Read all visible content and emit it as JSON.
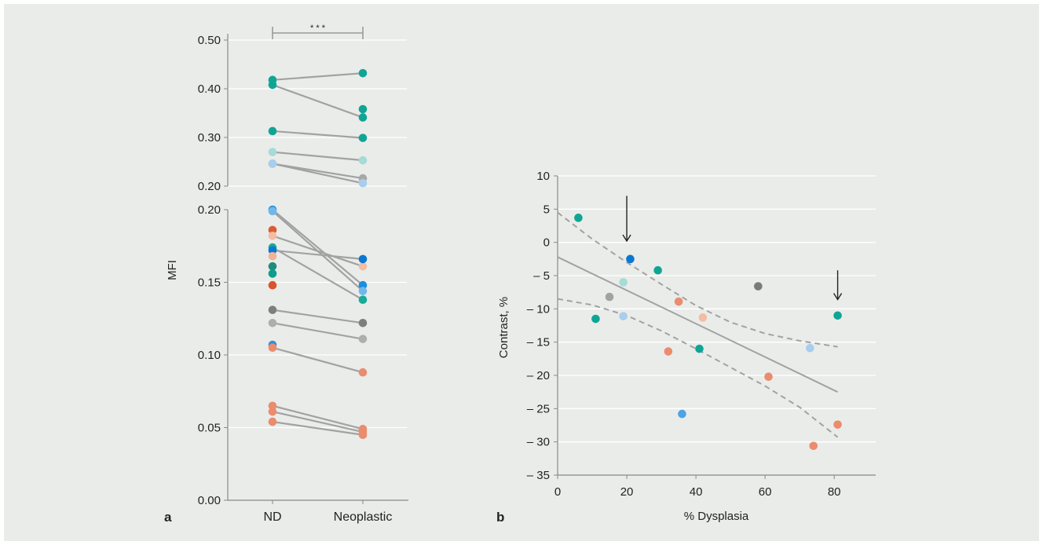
{
  "panel_labels": {
    "a": "a",
    "b": "b"
  },
  "chart_data": [
    {
      "type": "scatter",
      "panel": "a",
      "ylabel": "MFI",
      "categories": [
        "ND",
        "Neoplastic"
      ],
      "significance": "* * *",
      "upper_ylim": [
        0.2,
        0.5
      ],
      "upper_yticks": [
        "0.50",
        "0.40",
        "0.30",
        "0.20"
      ],
      "lower_ylim": [
        0.0,
        0.2
      ],
      "lower_yticks": [
        "0.20",
        "0.15",
        "0.10",
        "0.05",
        "0.00"
      ],
      "line_color": "#a2a2a2",
      "pairs": [
        {
          "nd": 0.418,
          "neo": 0.432,
          "color": "#0fa594"
        },
        {
          "nd": 0.408,
          "neo": 0.341,
          "color": "#0fa594"
        },
        {
          "nd": null,
          "neo": 0.358,
          "color": "#0fa594"
        },
        {
          "nd": 0.313,
          "neo": 0.299,
          "color": "#0fa594"
        },
        {
          "nd": 0.27,
          "neo": 0.253,
          "color": "#a6dbd6"
        },
        {
          "nd": 0.246,
          "neo": 0.216,
          "color": "#a8a8a8"
        },
        {
          "nd": 0.246,
          "neo": 0.206,
          "color": "#a8cdee"
        },
        {
          "nd": 0.2,
          "neo": 0.148,
          "color": "#1a8ee0"
        },
        {
          "nd": 0.199,
          "neo": 0.144,
          "color": "#70b8ec"
        },
        {
          "nd": 0.186,
          "neo": null,
          "color": "#dc5b33"
        },
        {
          "nd": 0.182,
          "neo": 0.161,
          "color": "#f2bda3"
        },
        {
          "nd": 0.174,
          "neo": 0.138,
          "color": "#18ab98"
        },
        {
          "nd": 0.172,
          "neo": 0.166,
          "color": "#0a78d2"
        },
        {
          "nd": 0.168,
          "neo": null,
          "color": "#f0b396"
        },
        {
          "nd": 0.161,
          "neo": null,
          "color": "#1f8c7d"
        },
        {
          "nd": 0.156,
          "neo": null,
          "color": "#0e9d8c"
        },
        {
          "nd": 0.148,
          "neo": null,
          "color": "#d9552d"
        },
        {
          "nd": 0.131,
          "neo": 0.122,
          "color": "#7e7e7e"
        },
        {
          "nd": 0.122,
          "neo": 0.111,
          "color": "#aeaeae"
        },
        {
          "nd": 0.107,
          "neo": null,
          "color": "#3a8ed6"
        },
        {
          "nd": 0.105,
          "neo": 0.088,
          "color": "#ea8c6e"
        },
        {
          "nd": 0.065,
          "neo": 0.049,
          "color": "#ea8c6e"
        },
        {
          "nd": 0.061,
          "neo": 0.047,
          "color": "#ea8c6e"
        },
        {
          "nd": 0.054,
          "neo": 0.045,
          "color": "#ea8c6e"
        }
      ]
    },
    {
      "type": "scatter",
      "panel": "b",
      "xlabel": "% Dysplasia",
      "ylabel": "Contrast, %",
      "xlim": [
        0,
        92
      ],
      "ylim": [
        -35,
        10
      ],
      "xticks": [
        "0",
        "20",
        "40",
        "60",
        "80"
      ],
      "yticks": [
        "10",
        "5",
        "0",
        "– 5",
        "– 10",
        "– 15",
        "– 20",
        "– 25",
        "– 30",
        "– 35"
      ],
      "grid": true,
      "points": [
        {
          "x": 6,
          "y": 3.7,
          "color": "#0fa594"
        },
        {
          "x": 11,
          "y": -11.5,
          "color": "#0fa594"
        },
        {
          "x": 15,
          "y": -8.2,
          "color": "#a2a2a2"
        },
        {
          "x": 19,
          "y": -6.0,
          "color": "#a6dbd6"
        },
        {
          "x": 19,
          "y": -11.1,
          "color": "#a8cdee"
        },
        {
          "x": 21,
          "y": -2.5,
          "color": "#0a78d2"
        },
        {
          "x": 29,
          "y": -4.2,
          "color": "#0fa594"
        },
        {
          "x": 32,
          "y": -16.4,
          "color": "#ea8c6e"
        },
        {
          "x": 35,
          "y": -8.9,
          "color": "#ea8c6e"
        },
        {
          "x": 36,
          "y": -25.8,
          "color": "#4aa3e6"
        },
        {
          "x": 41,
          "y": -16.0,
          "color": "#0fa594"
        },
        {
          "x": 42,
          "y": -11.3,
          "color": "#f2bda3"
        },
        {
          "x": 58,
          "y": -6.6,
          "color": "#7a7a7a"
        },
        {
          "x": 61,
          "y": -20.2,
          "color": "#ea8c6e"
        },
        {
          "x": 73,
          "y": -15.9,
          "color": "#a8cdee"
        },
        {
          "x": 74,
          "y": -30.6,
          "color": "#ea8c6e"
        },
        {
          "x": 81,
          "y": -11.0,
          "color": "#0fa594"
        },
        {
          "x": 81,
          "y": -27.4,
          "color": "#ea8c6e"
        }
      ],
      "regression_line": {
        "x": [
          0,
          81
        ],
        "y": [
          -2.2,
          -22.5
        ],
        "color": "#a2a2a2"
      },
      "confidence_band": {
        "color": "#a2a2a2",
        "upper": [
          [
            0,
            4.5
          ],
          [
            10,
            0.5
          ],
          [
            20,
            -3.0
          ],
          [
            30,
            -6.3
          ],
          [
            40,
            -9.5
          ],
          [
            50,
            -12.0
          ],
          [
            60,
            -13.7
          ],
          [
            70,
            -14.8
          ],
          [
            81,
            -15.7
          ]
        ],
        "lower": [
          [
            0,
            -8.5
          ],
          [
            10,
            -9.4
          ],
          [
            20,
            -11.0
          ],
          [
            30,
            -13.3
          ],
          [
            40,
            -16.0
          ],
          [
            50,
            -18.8
          ],
          [
            60,
            -21.6
          ],
          [
            70,
            -24.8
          ],
          [
            81,
            -29.3
          ]
        ]
      },
      "arrows": [
        {
          "x": 20,
          "y_top": 7.0,
          "y_tip": 0.2
        },
        {
          "x": 81,
          "y_top": -4.2,
          "y_tip": -8.6
        }
      ]
    }
  ]
}
